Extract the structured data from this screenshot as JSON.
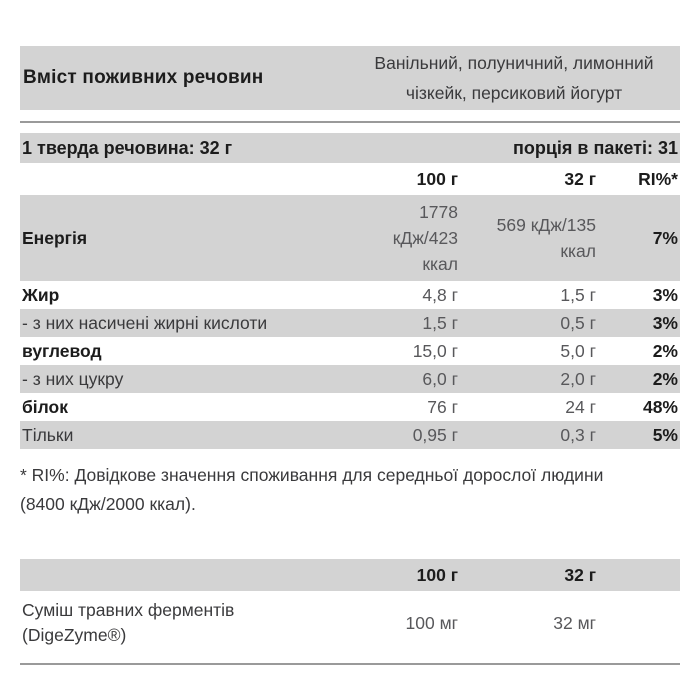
{
  "header": {
    "title": "Вміст поживних речовин",
    "flavors": "Ванільний, полуничний, лимонний чізкейк, персиковий йогурт"
  },
  "serving_row": {
    "solid": "1 тверда речовина: 32 г",
    "portions": "порція в пакеті: 31"
  },
  "columns": {
    "per_100g": "100 г",
    "per_32g": "32 г",
    "ri": "RI%*"
  },
  "rows": [
    {
      "label": "Енергія",
      "per_100g": "1778 кДж/423 ккал",
      "per_32g": "569 кДж/135 ккал",
      "ri": "7%"
    },
    {
      "label": "Жир",
      "per_100g": "4,8 г",
      "per_32g": "1,5 г",
      "ri": "3%"
    },
    {
      "label": "- з них насичені жирні кислоти",
      "per_100g": "1,5 г",
      "per_32g": "0,5 г",
      "ri": "3%"
    },
    {
      "label": "вуглевод",
      "per_100g": "15,0 г",
      "per_32g": "5,0 г",
      "ri": "2%"
    },
    {
      "label": "- з них цукру",
      "per_100g": "6,0 г",
      "per_32g": "2,0 г",
      "ri": "2%"
    },
    {
      "label": "білок",
      "per_100g": "76 г",
      "per_32g": "24 г",
      "ri": "48%"
    },
    {
      "label": "Тільки",
      "per_100g": "0,95 г",
      "per_32g": "0,3 г",
      "ri": "5%"
    }
  ],
  "footnote": "* RI%: Довідкове значення споживання для середньої дорослої людини (8400 кДж/2000 ккал).",
  "enzymes": {
    "columns": {
      "per_100g": "100 г",
      "per_32g": "32 г"
    },
    "name": "Суміш травних ферментів",
    "brand": "(DigeZyme®)",
    "per_100g": "100 мг",
    "per_32g": "32 мг"
  },
  "colors": {
    "row_shade": "#d3d3d3",
    "divider": "#9a9a9a",
    "text": "#1c1c1c",
    "value_text": "#58585b"
  }
}
